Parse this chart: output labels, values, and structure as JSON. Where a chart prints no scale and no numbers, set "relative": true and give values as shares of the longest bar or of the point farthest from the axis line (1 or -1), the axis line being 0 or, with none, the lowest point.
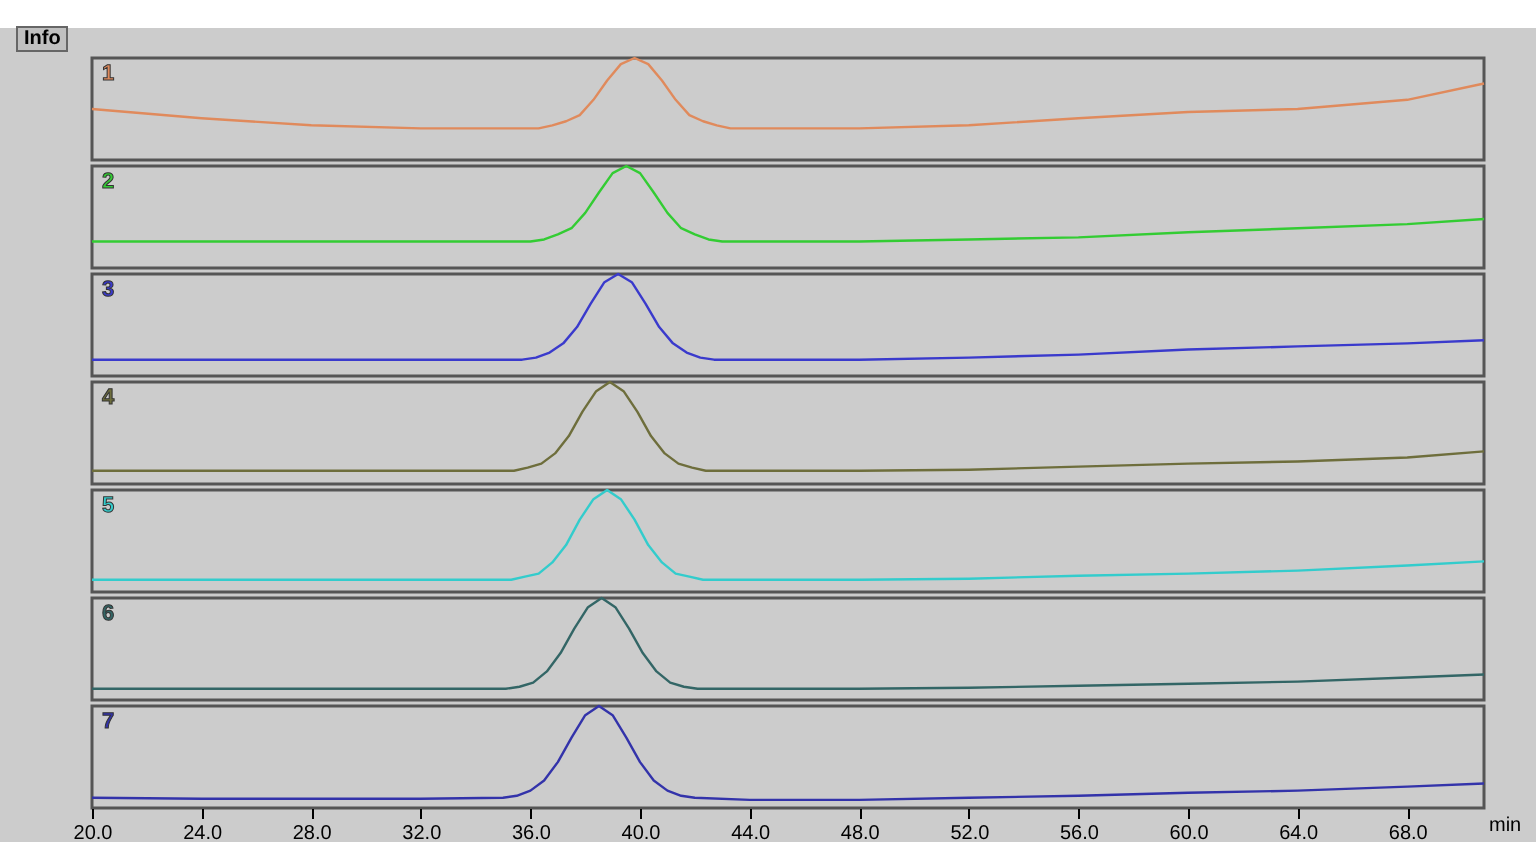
{
  "chart_data": [
    {
      "type": "line",
      "relative": true,
      "tick_labels": false,
      "xlim": [
        20,
        70.8
      ],
      "annotations": [
        "Info"
      ],
      "x": [
        20,
        24,
        28,
        32,
        36.3,
        36.8,
        37.3,
        37.8,
        38.3,
        38.8,
        39.3,
        39.8,
        40.3,
        40.8,
        41.3,
        41.8,
        42.3,
        42.8,
        43.3,
        44,
        48,
        52,
        56,
        60,
        64,
        68,
        70.8
      ],
      "series": [
        {
          "name": "1",
          "color": "#e08a5c",
          "values": [
            0.5,
            0.41,
            0.34,
            0.31,
            0.31,
            0.34,
            0.38,
            0.44,
            0.59,
            0.78,
            0.94,
            1,
            0.94,
            0.78,
            0.59,
            0.44,
            0.38,
            0.34,
            0.31,
            0.31,
            0.31,
            0.34,
            0.41,
            0.47,
            0.5,
            0.59,
            0.75
          ]
        }
      ]
    },
    {
      "type": "line",
      "relative": true,
      "tick_labels": false,
      "xlim": [
        20,
        70.8
      ],
      "x": [
        20,
        24,
        28,
        32,
        36,
        36.5,
        37,
        37.5,
        38,
        38.5,
        39,
        39.5,
        40,
        40.5,
        41,
        41.5,
        42,
        42.5,
        43,
        44,
        48,
        52,
        56,
        60,
        64,
        68,
        70.8
      ],
      "series": [
        {
          "name": "2",
          "color": "#33cc33",
          "values": [
            0.26,
            0.26,
            0.26,
            0.26,
            0.26,
            0.28,
            0.33,
            0.39,
            0.54,
            0.74,
            0.93,
            1,
            0.93,
            0.74,
            0.54,
            0.39,
            0.33,
            0.28,
            0.26,
            0.26,
            0.26,
            0.28,
            0.3,
            0.35,
            0.39,
            0.43,
            0.48
          ]
        }
      ]
    },
    {
      "type": "line",
      "relative": true,
      "tick_labels": false,
      "xlim": [
        20,
        70.8
      ],
      "x": [
        20,
        24,
        28,
        32,
        35.7,
        36.2,
        36.7,
        37.2,
        37.7,
        38.2,
        38.7,
        39.2,
        39.7,
        40.2,
        40.7,
        41.2,
        41.7,
        42.2,
        42.7,
        44,
        48,
        52,
        56,
        60,
        64,
        68,
        70.8
      ],
      "series": [
        {
          "name": "3",
          "color": "#3a3acc",
          "values": [
            0.16,
            0.16,
            0.16,
            0.16,
            0.16,
            0.18,
            0.23,
            0.32,
            0.48,
            0.71,
            0.92,
            1,
            0.92,
            0.71,
            0.48,
            0.32,
            0.23,
            0.18,
            0.16,
            0.16,
            0.16,
            0.18,
            0.21,
            0.26,
            0.29,
            0.32,
            0.35
          ]
        }
      ]
    },
    {
      "type": "line",
      "relative": true,
      "tick_labels": false,
      "xlim": [
        20,
        70.8
      ],
      "x": [
        20,
        24,
        28,
        32,
        35.4,
        35.9,
        36.4,
        36.9,
        37.4,
        37.9,
        38.4,
        38.9,
        39.4,
        39.9,
        40.4,
        40.9,
        41.4,
        41.9,
        42.4,
        44,
        48,
        52,
        56,
        60,
        64,
        68,
        70.8
      ],
      "series": [
        {
          "name": "4",
          "color": "#6e6e3c",
          "values": [
            0.13,
            0.13,
            0.13,
            0.13,
            0.13,
            0.16,
            0.2,
            0.3,
            0.47,
            0.71,
            0.91,
            1,
            0.91,
            0.71,
            0.47,
            0.3,
            0.2,
            0.16,
            0.13,
            0.13,
            0.13,
            0.14,
            0.17,
            0.2,
            0.22,
            0.26,
            0.32
          ]
        }
      ]
    },
    {
      "type": "line",
      "relative": true,
      "tick_labels": false,
      "xlim": [
        20,
        70.8
      ],
      "x": [
        20,
        24,
        28,
        32,
        35.3,
        35.8,
        36.3,
        36.8,
        37.3,
        37.8,
        38.3,
        38.8,
        39.3,
        39.8,
        40.3,
        40.8,
        41.3,
        41.8,
        42.3,
        44,
        48,
        52,
        56,
        60,
        64,
        68,
        70.8
      ],
      "series": [
        {
          "name": "5",
          "color": "#33cccc",
          "values": [
            0.12,
            0.12,
            0.12,
            0.12,
            0.12,
            0.15,
            0.18,
            0.29,
            0.46,
            0.71,
            0.91,
            1,
            0.91,
            0.71,
            0.46,
            0.29,
            0.18,
            0.15,
            0.12,
            0.12,
            0.12,
            0.13,
            0.16,
            0.18,
            0.21,
            0.26,
            0.3
          ]
        }
      ]
    },
    {
      "type": "line",
      "relative": true,
      "tick_labels": false,
      "xlim": [
        20,
        70.8
      ],
      "x": [
        20,
        24,
        28,
        32,
        35.1,
        35.6,
        36.1,
        36.6,
        37.1,
        37.6,
        38.1,
        38.6,
        39.1,
        39.6,
        40.1,
        40.6,
        41.1,
        41.6,
        42.1,
        44,
        48,
        52,
        56,
        60,
        64,
        68,
        70.8
      ],
      "series": [
        {
          "name": "6",
          "color": "#336666",
          "values": [
            0.11,
            0.11,
            0.11,
            0.11,
            0.11,
            0.13,
            0.17,
            0.28,
            0.46,
            0.7,
            0.91,
            1,
            0.91,
            0.7,
            0.46,
            0.28,
            0.17,
            0.13,
            0.11,
            0.11,
            0.11,
            0.12,
            0.14,
            0.16,
            0.18,
            0.22,
            0.25
          ]
        }
      ]
    },
    {
      "type": "line",
      "relative": true,
      "tick_labels": "x",
      "xlim": [
        20,
        70.8
      ],
      "xlabel": "min",
      "xticks": [
        {
          "value": 20,
          "label": "20.0"
        },
        {
          "value": 24,
          "label": "24.0"
        },
        {
          "value": 28,
          "label": "28.0"
        },
        {
          "value": 32,
          "label": "32.0"
        },
        {
          "value": 36,
          "label": "36.0"
        },
        {
          "value": 40,
          "label": "40.0"
        },
        {
          "value": 44,
          "label": "44.0"
        },
        {
          "value": 48,
          "label": "48.0"
        },
        {
          "value": 52,
          "label": "52.0"
        },
        {
          "value": 56,
          "label": "56.0"
        },
        {
          "value": 60,
          "label": "60.0"
        },
        {
          "value": 64,
          "label": "64.0"
        },
        {
          "value": 68,
          "label": "68.0"
        }
      ],
      "x": [
        20,
        24,
        28,
        32,
        35,
        35.5,
        36,
        36.5,
        37,
        37.5,
        38,
        38.5,
        39,
        39.5,
        40,
        40.5,
        41,
        41.5,
        42,
        44,
        48,
        52,
        56,
        60,
        64,
        68,
        70.8
      ],
      "series": [
        {
          "name": "7",
          "color": "#3333aa",
          "values": [
            0.1,
            0.09,
            0.09,
            0.09,
            0.1,
            0.12,
            0.17,
            0.27,
            0.45,
            0.69,
            0.91,
            1.0,
            0.91,
            0.69,
            0.45,
            0.27,
            0.17,
            0.12,
            0.1,
            0.08,
            0.08,
            0.1,
            0.12,
            0.15,
            0.17,
            0.21,
            0.24
          ]
        }
      ]
    }
  ]
}
